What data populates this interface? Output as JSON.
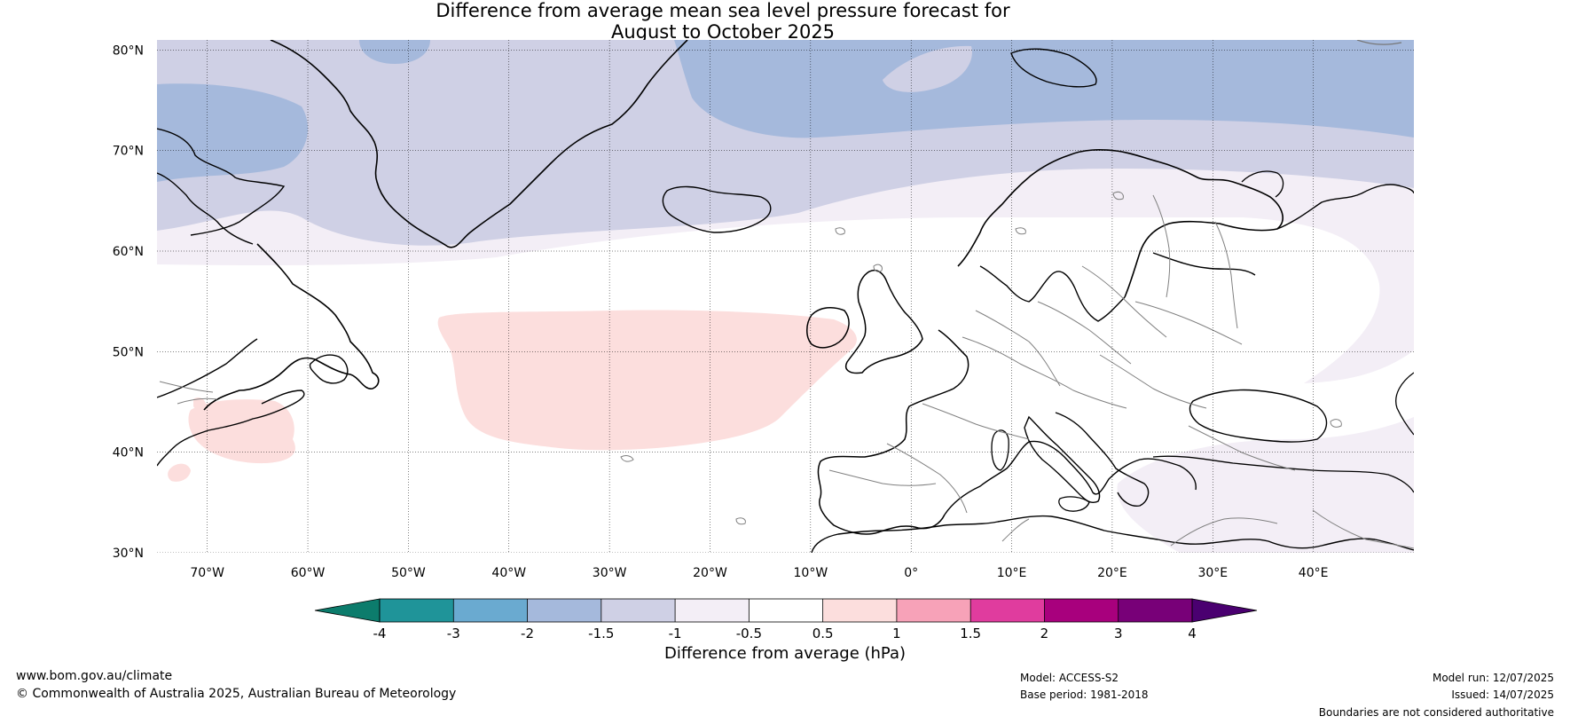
{
  "header": {
    "title_line1": "Difference from average mean sea level pressure forecast for",
    "title_line2": "August to October 2025"
  },
  "map": {
    "lat_labels": [
      "80°N",
      "70°N",
      "60°N",
      "50°N",
      "40°N",
      "30°N"
    ],
    "lon_labels": [
      "70°W",
      "60°W",
      "50°W",
      "40°W",
      "30°W",
      "20°W",
      "10°W",
      "0°",
      "10°E",
      "20°E",
      "30°E",
      "40°E"
    ],
    "extent": {
      "lon_min": -75,
      "lon_max": 50,
      "lat_min": 30,
      "lat_max": 81
    }
  },
  "colorbar": {
    "title": "Difference from average (hPa)",
    "tick_labels": [
      "-4",
      "-3",
      "-2",
      "-1.5",
      "-1",
      "-0.5",
      "0.5",
      "1",
      "1.5",
      "2",
      "3",
      "4"
    ],
    "colors": {
      "below_min": "#0c7c6c",
      "bins": [
        "#1f9499",
        "#6aaad0",
        "#a5b9dc",
        "#cfd0e5",
        "#f3eef6",
        "#ffffff",
        "#fcdedd",
        "#f7a2b8",
        "#e03c9e",
        "#a8007d",
        "#780078"
      ],
      "above_max": "#4a0070"
    }
  },
  "footer": {
    "site": "www.bom.gov.au/climate",
    "copyright": "© Commonwealth of Australia 2025, Australian Bureau of Meteorology",
    "model": "Model: ACCESS-S2",
    "base_period": "Base period: 1981-2018",
    "model_run": "Model run: 12/07/2025",
    "issued": "Issued: 14/07/2025",
    "disclaimer": "Boundaries are not considered authoritative"
  }
}
